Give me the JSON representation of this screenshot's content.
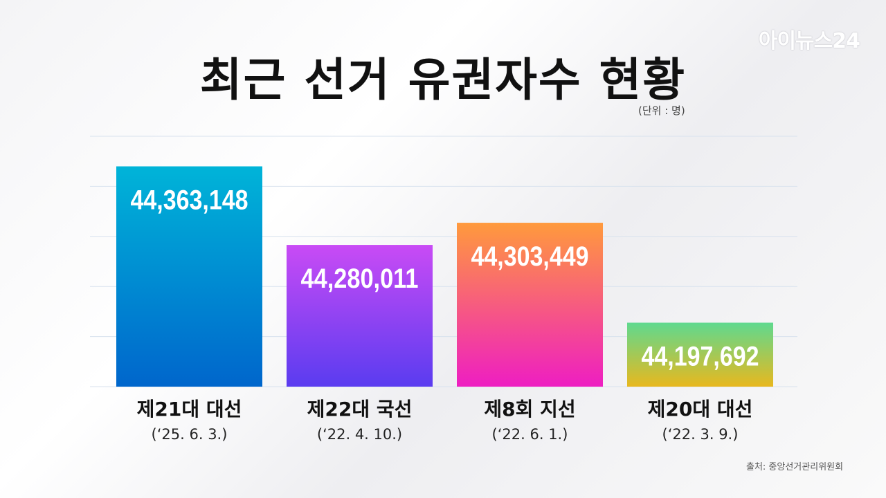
{
  "watermark": "아이뉴스24",
  "title": "최근 선거 유권자수 현황",
  "unit_note": "(단위 : 명)",
  "source": "출처: 중앙선거관리위원회",
  "colors": {
    "bar1": [
      "#00b4d8",
      "#0066cc"
    ],
    "bar2": [
      "#c94bf5",
      "#5a3cf0"
    ],
    "bar3": [
      "#ff9a3c",
      "#ee1ec2"
    ],
    "bar4": [
      "#5fd98f",
      "#e8b81e"
    ],
    "grid": "#d8e2ee"
  },
  "chart_data": {
    "type": "bar",
    "title": "최근 선거 유권자수 현황",
    "ylabel": "(단위 : 명)",
    "categories": [
      "제21대 대선",
      "제22대 국선",
      "제8회 지선",
      "제20대 대선"
    ],
    "dates": [
      "(‘25. 6. 3.)",
      "(‘22. 4. 10.)",
      "(‘22. 6. 1.)",
      "(‘22. 3. 9.)"
    ],
    "values": [
      44363148,
      44280011,
      44303449,
      44197692
    ],
    "value_labels": [
      "44,363,148",
      "44,280,011",
      "44,303,449",
      "44,197,692"
    ],
    "ylim": [
      44130000,
      44395000
    ],
    "grid": true
  }
}
